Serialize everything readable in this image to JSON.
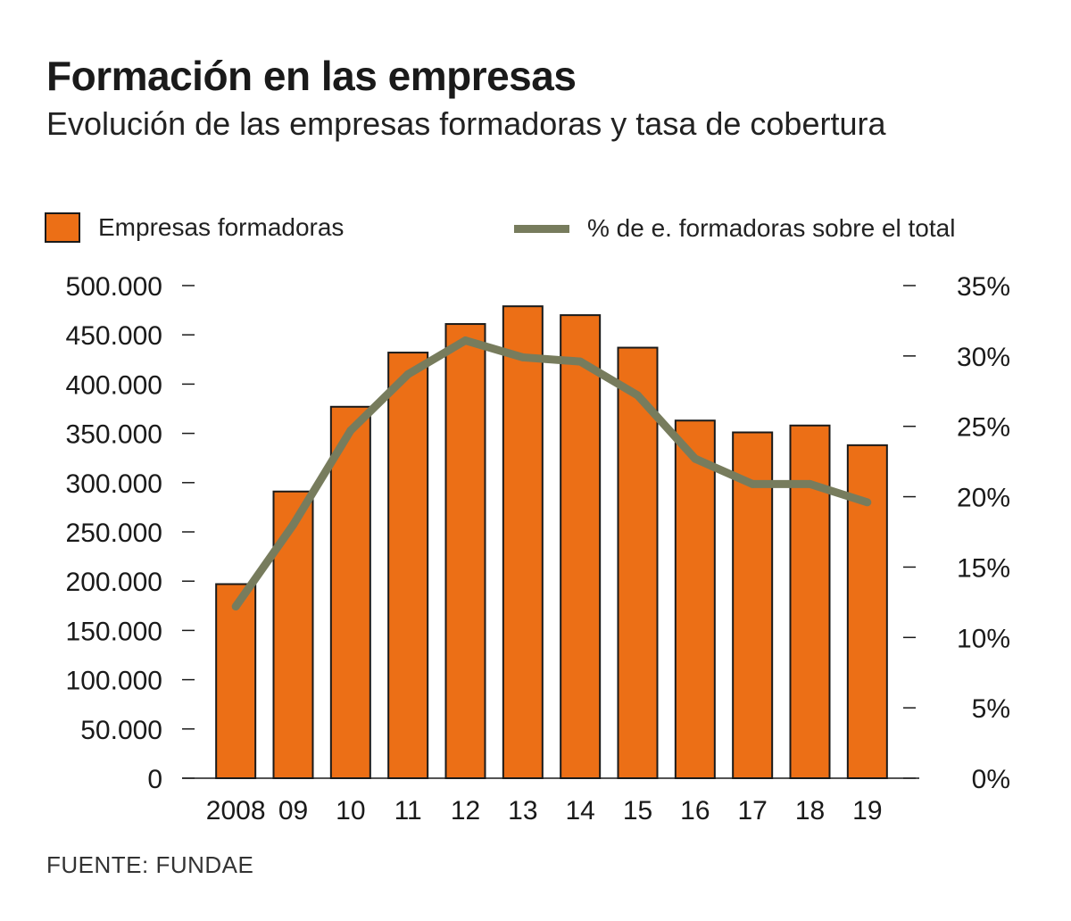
{
  "header": {
    "title": "Formación en las empresas",
    "subtitle": "Evolución de las empresas formadoras y tasa de cobertura"
  },
  "legend": {
    "bar_label": "Empresas formadoras",
    "line_label": "% de e. formadoras sobre el total"
  },
  "source": "FUENTE: FUNDAE",
  "colors": {
    "bar": "#ec6f16",
    "bar_stroke": "#1a1a1a",
    "line": "#777c5d"
  },
  "chart_data": {
    "type": "bar",
    "categories": [
      "2008",
      "09",
      "10",
      "11",
      "12",
      "13",
      "14",
      "15",
      "16",
      "17",
      "18",
      "19"
    ],
    "series": [
      {
        "name": "Empresas formadoras",
        "type": "bar",
        "axis": "left",
        "values": [
          197000,
          291000,
          377000,
          432000,
          461000,
          479000,
          470000,
          437000,
          363000,
          351000,
          358000,
          338000
        ]
      },
      {
        "name": "% de e. formadoras sobre el total",
        "type": "line",
        "axis": "right",
        "values": [
          12.2,
          18.0,
          24.7,
          28.7,
          31.1,
          29.9,
          29.6,
          27.2,
          22.7,
          20.9,
          20.9,
          19.6
        ]
      }
    ],
    "y_left": {
      "ylim": [
        0,
        500000
      ],
      "ticks": [
        0,
        50000,
        100000,
        150000,
        200000,
        250000,
        300000,
        350000,
        400000,
        450000,
        500000
      ],
      "tick_labels": [
        "0",
        "50.000",
        "100.000",
        "150.000",
        "200.000",
        "250.000",
        "300.000",
        "350.000",
        "400.000",
        "450.000",
        "500.000"
      ]
    },
    "y_right": {
      "ylim": [
        0,
        35
      ],
      "ticks": [
        0,
        5,
        10,
        15,
        20,
        25,
        30,
        35
      ],
      "tick_labels": [
        "0%",
        "5%",
        "10%",
        "15%",
        "20%",
        "25%",
        "30%",
        "35%"
      ]
    },
    "grid": false,
    "legend_position": "top"
  }
}
